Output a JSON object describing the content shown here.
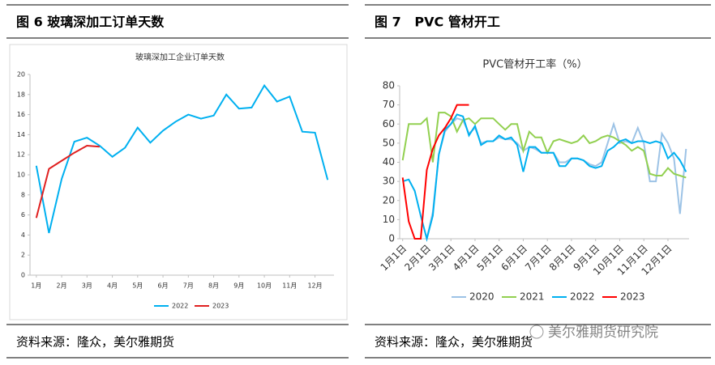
{
  "panels": [
    {
      "heading": "图 6 玻璃深加工订单天数",
      "source": "资料来源：隆众，美尔雅期货"
    },
    {
      "heading": "图 7   PVC 管材开工",
      "source": "资料来源：隆众，美尔雅期货"
    }
  ],
  "watermark": "美尔雅期货研究院",
  "chart_data": [
    {
      "type": "line",
      "title": "玻璃深加工企业订单天数",
      "categories": [
        "1月",
        null,
        "2月",
        null,
        "3月",
        null,
        "4月",
        null,
        "5月",
        null,
        "6月",
        null,
        "7月",
        null,
        "8月",
        null,
        "9月",
        null,
        "10月",
        null,
        "11月",
        null,
        "12月",
        null
      ],
      "series": [
        {
          "name": "2022",
          "color": "#00B0F0",
          "values": [
            10.9,
            4.2,
            9.6,
            13.3,
            13.7,
            12.9,
            11.8,
            12.7,
            14.7,
            13.2,
            14.4,
            15.3,
            16.0,
            15.6,
            15.9,
            18.0,
            16.6,
            16.7,
            18.9,
            17.3,
            17.8,
            14.3,
            14.2,
            9.5
          ]
        },
        {
          "name": "2023",
          "color": "#E02020",
          "values": [
            5.7,
            10.6,
            11.4,
            12.2,
            12.9,
            12.8,
            null,
            null,
            null,
            null,
            null,
            null,
            null,
            null,
            null,
            null,
            null,
            null,
            null,
            null,
            null,
            null,
            null,
            null
          ]
        }
      ],
      "ylim": [
        0,
        20
      ],
      "yticks": [
        0,
        2,
        4,
        6,
        8,
        10,
        12,
        14,
        16,
        18,
        20
      ]
    },
    {
      "type": "line",
      "title": "PVC管材开工率（%）",
      "categories": [
        "1月1日",
        null,
        null,
        null,
        "2月1日",
        null,
        null,
        null,
        "3月1日",
        null,
        null,
        null,
        "4月1日",
        null,
        null,
        null,
        "5月1日",
        null,
        null,
        null,
        "6月1日",
        null,
        null,
        null,
        "7月1日",
        null,
        null,
        null,
        "8月1日",
        null,
        null,
        null,
        "9月1日",
        null,
        null,
        null,
        "10月1日",
        null,
        null,
        null,
        "11月1日",
        null,
        null,
        null,
        "12月1日",
        null,
        null,
        null
      ],
      "series": [
        {
          "name": "2020",
          "color": "#9DC3E6",
          "values": [
            null,
            null,
            null,
            null,
            0,
            14,
            44,
            56,
            60,
            63,
            62,
            55,
            58,
            50,
            51,
            51,
            53,
            52,
            52,
            50,
            46,
            48,
            47,
            45,
            45,
            45,
            40,
            40,
            42,
            42,
            41,
            39,
            38,
            40,
            50,
            60,
            50,
            51,
            50,
            58,
            50,
            30,
            30,
            55,
            50,
            42,
            13,
            47
          ]
        },
        {
          "name": "2021",
          "color": "#92D050",
          "values": [
            41,
            60,
            60,
            60,
            63,
            40,
            66,
            66,
            64,
            56,
            62,
            63,
            60,
            63,
            63,
            63,
            60,
            57,
            60,
            60,
            46,
            56,
            53,
            53,
            45,
            51,
            52,
            51,
            50,
            51,
            54,
            50,
            51,
            53,
            54,
            53,
            51,
            49,
            46,
            48,
            46,
            34,
            33,
            33,
            37,
            34,
            33,
            32
          ]
        },
        {
          "name": "2022",
          "color": "#00B0F0",
          "values": [
            30,
            31,
            25,
            12,
            0,
            12,
            44,
            57,
            60,
            65,
            64,
            54,
            59,
            49,
            51,
            51,
            54,
            52,
            53,
            49,
            35,
            48,
            48,
            45,
            45,
            45,
            38,
            38,
            42,
            42,
            41,
            38,
            37,
            38,
            46,
            48,
            51,
            52,
            50,
            51,
            51,
            50,
            51,
            50,
            42,
            45,
            41,
            35
          ]
        },
        {
          "name": "2023",
          "color": "#FF0000",
          "values": [
            32,
            9,
            0,
            0,
            36,
            47,
            54,
            58,
            63,
            70,
            70,
            70,
            null,
            null,
            null,
            null,
            null,
            null,
            null,
            null,
            null,
            null,
            null,
            null,
            null,
            null,
            null,
            null,
            null,
            null,
            null,
            null,
            null,
            null,
            null,
            null,
            null,
            null,
            null,
            null,
            null,
            null,
            null,
            null,
            null,
            null,
            null,
            null
          ]
        }
      ],
      "ylim": [
        0,
        80
      ],
      "yticks": [
        0,
        10,
        20,
        30,
        40,
        50,
        60,
        70,
        80
      ]
    }
  ]
}
